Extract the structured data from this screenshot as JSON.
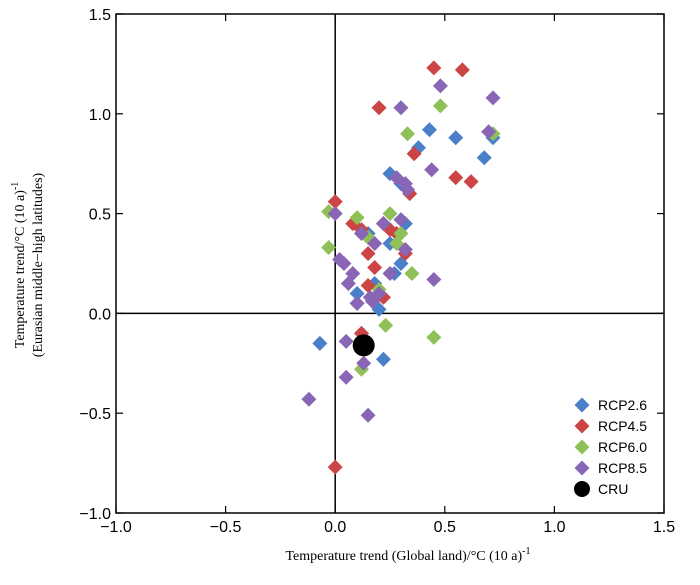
{
  "chart_data": {
    "type": "scatter",
    "xlabel": "Temperature trend (Global land)/°C (10 a)",
    "xlabel_sup": "-1",
    "ylabel_line1": "Temperature trend/°C (10 a)",
    "ylabel_sup": "-1",
    "ylabel_line2": "(Eurasian middle−high latitudes)",
    "xlim": [
      -1.0,
      1.5
    ],
    "ylim": [
      -1.0,
      1.5
    ],
    "xticks": [
      -1.0,
      -0.5,
      0.0,
      0.5,
      1.0,
      1.5
    ],
    "yticks": [
      -1.0,
      -0.5,
      0.0,
      0.5,
      1.0,
      1.5
    ],
    "xtick_labels": [
      "−1.0",
      "−0.5",
      "0.0",
      "0.5",
      "1.0",
      "1.5"
    ],
    "ytick_labels": [
      "−1.0",
      "−0.5",
      "0.0",
      "0.5",
      "1.0",
      "1.5"
    ],
    "reference_lines": {
      "x": 0,
      "y": 0
    },
    "grid": false,
    "legend_position": "bottom-right",
    "series": [
      {
        "name": "RCP2.6",
        "color": "#4a7fc9",
        "marker": "diamond",
        "points": [
          [
            -0.07,
            -0.15
          ],
          [
            0.1,
            0.05
          ],
          [
            0.12,
            -0.1
          ],
          [
            0.2,
            0.02
          ],
          [
            0.22,
            -0.23
          ],
          [
            0.25,
            0.7
          ],
          [
            0.27,
            0.2
          ],
          [
            0.3,
            0.65
          ],
          [
            0.32,
            0.45
          ],
          [
            0.38,
            0.83
          ],
          [
            0.43,
            0.92
          ],
          [
            0.55,
            0.88
          ],
          [
            0.68,
            0.78
          ],
          [
            0.72,
            0.88
          ],
          [
            0.15,
            0.4
          ],
          [
            0.25,
            0.35
          ],
          [
            0.3,
            0.25
          ],
          [
            0.18,
            0.15
          ],
          [
            0.1,
            0.1
          ]
        ]
      },
      {
        "name": "RCP4.5",
        "color": "#cc4444",
        "marker": "diamond",
        "points": [
          [
            0.0,
            0.56
          ],
          [
            0.08,
            0.45
          ],
          [
            0.12,
            0.42
          ],
          [
            0.15,
            0.3
          ],
          [
            0.18,
            0.23
          ],
          [
            0.2,
            1.03
          ],
          [
            0.22,
            0.45
          ],
          [
            0.25,
            0.42
          ],
          [
            0.28,
            0.4
          ],
          [
            0.32,
            0.3
          ],
          [
            0.34,
            0.6
          ],
          [
            0.36,
            0.8
          ],
          [
            0.45,
            1.23
          ],
          [
            0.55,
            0.68
          ],
          [
            0.58,
            1.22
          ],
          [
            0.62,
            0.66
          ],
          [
            0.15,
            0.14
          ],
          [
            0.22,
            0.08
          ],
          [
            0.0,
            -0.77
          ],
          [
            0.12,
            -0.1
          ]
        ]
      },
      {
        "name": "RCP6.0",
        "color": "#8fc158",
        "marker": "diamond",
        "points": [
          [
            -0.03,
            0.33
          ],
          [
            -0.03,
            0.51
          ],
          [
            0.1,
            0.48
          ],
          [
            0.15,
            0.38
          ],
          [
            0.2,
            0.12
          ],
          [
            0.23,
            -0.06
          ],
          [
            0.25,
            0.5
          ],
          [
            0.3,
            0.4
          ],
          [
            0.33,
            0.9
          ],
          [
            0.35,
            0.2
          ],
          [
            0.45,
            -0.12
          ],
          [
            0.48,
            1.04
          ],
          [
            0.72,
            0.9
          ],
          [
            0.12,
            -0.28
          ],
          [
            0.28,
            0.35
          ]
        ]
      },
      {
        "name": "RCP8.5",
        "color": "#8866b5",
        "marker": "diamond",
        "points": [
          [
            -0.12,
            -0.43
          ],
          [
            0.0,
            0.5
          ],
          [
            0.02,
            0.27
          ],
          [
            0.04,
            0.25
          ],
          [
            0.05,
            -0.32
          ],
          [
            0.06,
            0.15
          ],
          [
            0.08,
            0.2
          ],
          [
            0.1,
            0.05
          ],
          [
            0.13,
            -0.25
          ],
          [
            0.15,
            -0.51
          ],
          [
            0.16,
            0.08
          ],
          [
            0.18,
            0.35
          ],
          [
            0.2,
            0.1
          ],
          [
            0.22,
            0.45
          ],
          [
            0.25,
            0.2
          ],
          [
            0.28,
            0.68
          ],
          [
            0.3,
            0.47
          ],
          [
            0.32,
            0.65
          ],
          [
            0.33,
            0.62
          ],
          [
            0.3,
            1.03
          ],
          [
            0.44,
            0.72
          ],
          [
            0.45,
            0.17
          ],
          [
            0.48,
            1.14
          ],
          [
            0.7,
            0.91
          ],
          [
            0.72,
            1.08
          ],
          [
            0.12,
            0.4
          ],
          [
            0.32,
            0.32
          ],
          [
            0.17,
            0.06
          ],
          [
            0.05,
            -0.14
          ]
        ]
      },
      {
        "name": "CRU",
        "color": "#000000",
        "marker": "circle",
        "points": [
          [
            0.13,
            -0.16
          ]
        ]
      }
    ]
  }
}
